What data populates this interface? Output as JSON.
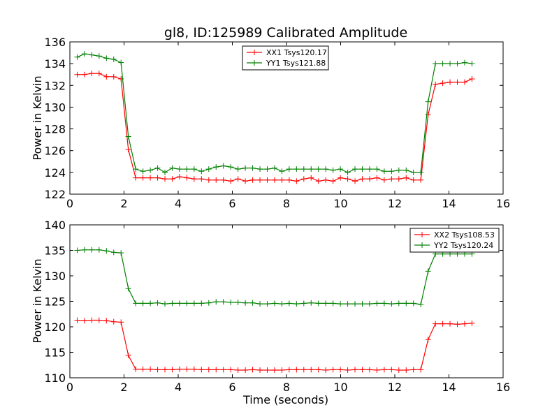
{
  "figure": {
    "title": "gl8, ID:125989 Calibrated Amplitude",
    "xlabel": "Time (seconds)"
  },
  "chart_data": [
    {
      "type": "line",
      "title": "gl8, ID:125989 Calibrated Amplitude",
      "xlabel": "",
      "ylabel": "Power in Kelvin",
      "xlim": [
        0,
        16
      ],
      "ylim": [
        122,
        136
      ],
      "xticks": [
        0,
        2,
        4,
        6,
        8,
        10,
        12,
        14,
        16
      ],
      "yticks": [
        122,
        124,
        126,
        128,
        130,
        132,
        134,
        136
      ],
      "grid": false,
      "legend_position": "top-center",
      "x": [
        0.27,
        0.54,
        0.81,
        1.08,
        1.35,
        1.62,
        1.89,
        2.16,
        2.43,
        2.7,
        2.97,
        3.24,
        3.51,
        3.78,
        4.05,
        4.32,
        4.59,
        4.86,
        5.13,
        5.4,
        5.67,
        5.94,
        6.21,
        6.48,
        6.75,
        7.02,
        7.29,
        7.56,
        7.83,
        8.1,
        8.37,
        8.64,
        8.91,
        9.18,
        9.45,
        9.72,
        9.99,
        10.26,
        10.53,
        10.8,
        11.07,
        11.34,
        11.61,
        11.88,
        12.15,
        12.42,
        12.69,
        12.96,
        13.23,
        13.5,
        13.77,
        14.04,
        14.31,
        14.58,
        14.85
      ],
      "series": [
        {
          "name": "XX1 Tsys120.17",
          "color": "#ff0000",
          "values": [
            133.0,
            133.0,
            133.1,
            133.1,
            132.8,
            132.8,
            132.6,
            126.1,
            123.5,
            123.5,
            123.5,
            123.5,
            123.4,
            123.4,
            123.6,
            123.5,
            123.4,
            123.4,
            123.3,
            123.3,
            123.3,
            123.2,
            123.4,
            123.2,
            123.3,
            123.3,
            123.3,
            123.3,
            123.3,
            123.3,
            123.2,
            123.4,
            123.5,
            123.2,
            123.3,
            123.2,
            123.5,
            123.4,
            123.2,
            123.4,
            123.4,
            123.5,
            123.3,
            123.4,
            123.4,
            123.5,
            123.3,
            123.3,
            129.3,
            132.1,
            132.2,
            132.3,
            132.3,
            132.3,
            132.6
          ]
        },
        {
          "name": "YY1 Tsys121.88",
          "color": "#008000",
          "values": [
            134.6,
            134.9,
            134.8,
            134.7,
            134.5,
            134.4,
            134.1,
            127.3,
            124.3,
            124.1,
            124.2,
            124.4,
            124.0,
            124.4,
            124.3,
            124.3,
            124.3,
            124.1,
            124.3,
            124.5,
            124.6,
            124.5,
            124.3,
            124.4,
            124.4,
            124.3,
            124.3,
            124.4,
            124.1,
            124.3,
            124.3,
            124.3,
            124.3,
            124.3,
            124.3,
            124.2,
            124.3,
            124.0,
            124.3,
            124.3,
            124.3,
            124.3,
            124.1,
            124.1,
            124.2,
            124.2,
            124.0,
            124.0,
            130.5,
            134.0,
            134.0,
            134.0,
            134.0,
            134.1,
            134.0
          ]
        }
      ]
    },
    {
      "type": "line",
      "title": "",
      "xlabel": "Time (seconds)",
      "ylabel": "Power in Kelvin",
      "xlim": [
        0,
        16
      ],
      "ylim": [
        110,
        140
      ],
      "xticks": [
        0,
        2,
        4,
        6,
        8,
        10,
        12,
        14,
        16
      ],
      "yticks": [
        110,
        115,
        120,
        125,
        130,
        135,
        140
      ],
      "grid": false,
      "legend_position": "top-right",
      "x": [
        0.27,
        0.54,
        0.81,
        1.08,
        1.35,
        1.62,
        1.89,
        2.16,
        2.43,
        2.7,
        2.97,
        3.24,
        3.51,
        3.78,
        4.05,
        4.32,
        4.59,
        4.86,
        5.13,
        5.4,
        5.67,
        5.94,
        6.21,
        6.48,
        6.75,
        7.02,
        7.29,
        7.56,
        7.83,
        8.1,
        8.37,
        8.64,
        8.91,
        9.18,
        9.45,
        9.72,
        9.99,
        10.26,
        10.53,
        10.8,
        11.07,
        11.34,
        11.61,
        11.88,
        12.15,
        12.42,
        12.69,
        12.96,
        13.23,
        13.5,
        13.77,
        14.04,
        14.31,
        14.58,
        14.85
      ],
      "series": [
        {
          "name": "XX2 Tsys108.53",
          "color": "#ff0000",
          "values": [
            121.3,
            121.2,
            121.3,
            121.3,
            121.2,
            121.0,
            120.9,
            114.4,
            111.7,
            111.7,
            111.7,
            111.6,
            111.6,
            111.6,
            111.7,
            111.7,
            111.7,
            111.6,
            111.6,
            111.6,
            111.6,
            111.6,
            111.5,
            111.5,
            111.6,
            111.5,
            111.5,
            111.5,
            111.5,
            111.6,
            111.6,
            111.6,
            111.6,
            111.6,
            111.5,
            111.6,
            111.6,
            111.5,
            111.6,
            111.6,
            111.6,
            111.5,
            111.6,
            111.6,
            111.5,
            111.5,
            111.6,
            111.6,
            117.5,
            120.6,
            120.6,
            120.6,
            120.5,
            120.6,
            120.7
          ]
        },
        {
          "name": "YY2 Tsys120.24",
          "color": "#008000",
          "values": [
            135.0,
            135.1,
            135.1,
            135.1,
            134.9,
            134.6,
            134.5,
            127.5,
            124.6,
            124.6,
            124.6,
            124.7,
            124.5,
            124.6,
            124.6,
            124.6,
            124.6,
            124.6,
            124.7,
            124.9,
            124.9,
            124.8,
            124.8,
            124.7,
            124.7,
            124.5,
            124.5,
            124.6,
            124.5,
            124.6,
            124.5,
            124.6,
            124.7,
            124.6,
            124.6,
            124.6,
            124.5,
            124.5,
            124.5,
            124.5,
            124.5,
            124.6,
            124.6,
            124.5,
            124.6,
            124.6,
            124.6,
            124.4,
            130.9,
            134.3,
            134.3,
            134.3,
            134.3,
            134.3,
            134.3
          ]
        }
      ]
    }
  ]
}
